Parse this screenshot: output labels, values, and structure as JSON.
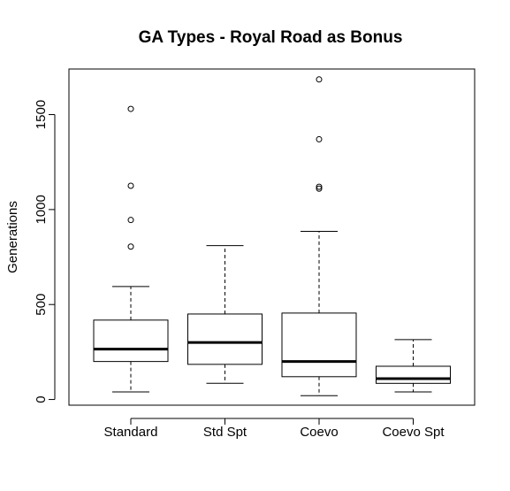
{
  "chart_data": {
    "type": "boxplot",
    "title": "GA Types - Royal Road as Bonus",
    "xlabel": "",
    "ylabel": "Generations",
    "ylim": [
      -30,
      1740
    ],
    "yticks": [
      0,
      500,
      1000,
      1500
    ],
    "grid": false,
    "categories": [
      "Standard",
      "Std Spt",
      "Coevo",
      "Coevo Spt"
    ],
    "boxes": [
      {
        "whisker_low": 40,
        "q1": 200,
        "median": 265,
        "q3": 418,
        "whisker_high": 595,
        "outliers": [
          805,
          945,
          1125,
          1530
        ]
      },
      {
        "whisker_low": 85,
        "q1": 185,
        "median": 300,
        "q3": 450,
        "whisker_high": 810,
        "outliers": []
      },
      {
        "whisker_low": 20,
        "q1": 120,
        "median": 200,
        "q3": 455,
        "whisker_high": 885,
        "outliers": [
          1110,
          1120,
          1370,
          1685
        ]
      },
      {
        "whisker_low": 40,
        "q1": 85,
        "median": 110,
        "q3": 175,
        "whisker_high": 315,
        "outliers": []
      }
    ],
    "colors": {
      "stroke": "#000000",
      "background": "#ffffff"
    }
  }
}
